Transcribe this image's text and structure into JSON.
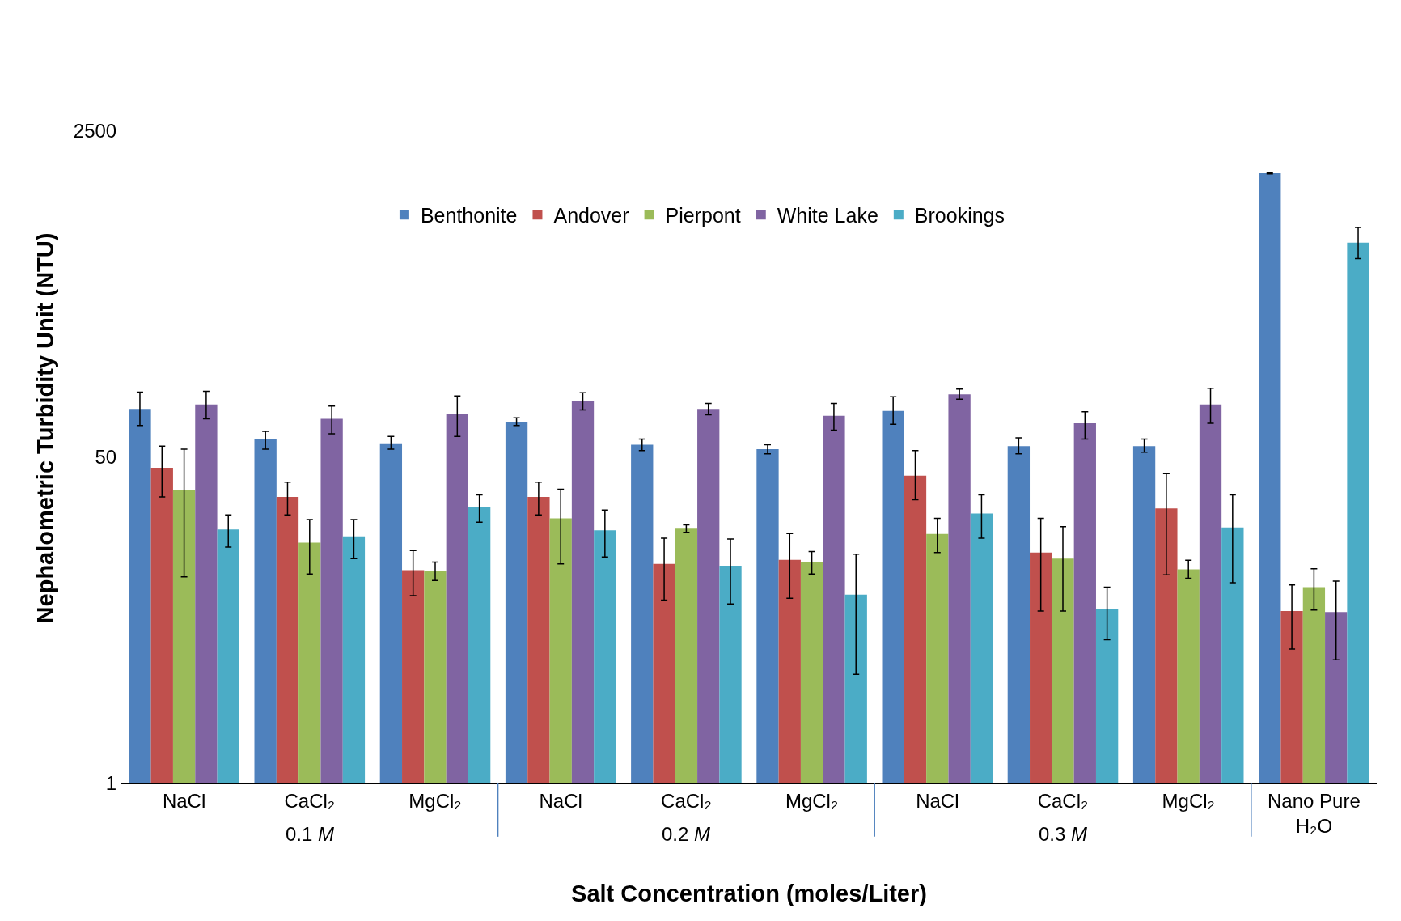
{
  "chart_data": {
    "type": "bar",
    "xlabel": "Salt Concentration (moles/Liter)",
    "ylabel": "Nephalometric Turbidity Unit (NTU)",
    "categories": [
      "NaCl",
      "CaCl₂",
      "MgCl₂",
      "NaCl",
      "CaCl₂",
      "MgCl₂",
      "NaCl",
      "CaCl₂",
      "MgCl₂",
      "Nano Pure H₂O"
    ],
    "annotations": [
      "0.1 M",
      "0.2 M",
      "0.3 M"
    ],
    "series": [
      {
        "name": "Benthonite",
        "color": "#4f81bd",
        "values": [
          89,
          62,
          59,
          76,
          58,
          55,
          87,
          57,
          57,
          1500
        ],
        "errors": [
          [
            73,
            109
          ],
          [
            55,
            68
          ],
          [
            55,
            64
          ],
          [
            73,
            80
          ],
          [
            54,
            62
          ],
          [
            52,
            58
          ],
          [
            74,
            103
          ],
          [
            52,
            63
          ],
          [
            53,
            62
          ],
          [
            1490,
            1510
          ]
        ]
      },
      {
        "name": "Andover",
        "color": "#c0504d",
        "values": [
          44,
          31,
          12.9,
          31,
          13.9,
          14.6,
          40,
          15.9,
          27,
          7.9
        ],
        "errors": [
          [
            31,
            57
          ],
          [
            25,
            37
          ],
          [
            9.5,
            16.3
          ],
          [
            25,
            37
          ],
          [
            9,
            18.9
          ],
          [
            9.2,
            20
          ],
          [
            30,
            54
          ],
          [
            7.9,
            24
          ],
          [
            12.2,
            41
          ],
          [
            5,
            10.8
          ]
        ]
      },
      {
        "name": "Pierpont",
        "color": "#9bbb59",
        "values": [
          33.5,
          17.9,
          12.7,
          24,
          21.2,
          14.2,
          19.9,
          14.8,
          13,
          10.5
        ],
        "errors": [
          [
            11.9,
            55
          ],
          [
            12.3,
            23.6
          ],
          [
            11.4,
            14.2
          ],
          [
            13.9,
            34
          ],
          [
            20.3,
            22.2
          ],
          [
            12.3,
            16.1
          ],
          [
            15.9,
            24
          ],
          [
            7.9,
            21.7
          ],
          [
            11.7,
            14.5
          ],
          [
            8,
            13.1
          ]
        ]
      },
      {
        "name": "White Lake",
        "color": "#8064a2",
        "values": [
          94,
          79,
          84,
          98,
          89,
          82,
          106,
          75,
          94,
          7.8
        ],
        "errors": [
          [
            79,
            110
          ],
          [
            66,
            92
          ],
          [
            64,
            104
          ],
          [
            88,
            108
          ],
          [
            83,
            95
          ],
          [
            69,
            95
          ],
          [
            100,
            113
          ],
          [
            62,
            86
          ],
          [
            75,
            114
          ],
          [
            4.4,
            11.3
          ]
        ]
      },
      {
        "name": "Brookings",
        "color": "#4bacc6",
        "values": [
          21,
          19.3,
          27.4,
          20.8,
          13.6,
          9.6,
          25.4,
          8.1,
          21.5,
          654
        ],
        "errors": [
          [
            17,
            25
          ],
          [
            14.8,
            23.6
          ],
          [
            22.9,
            31.8
          ],
          [
            15.1,
            26.5
          ],
          [
            8.6,
            18.7
          ],
          [
            3.7,
            15.6
          ],
          [
            18.9,
            31.8
          ],
          [
            5.6,
            10.5
          ],
          [
            11.1,
            31.8
          ],
          [
            539,
            784
          ]
        ]
      }
    ],
    "log": true,
    "ylim": [
      1,
      5000
    ],
    "yticks": [
      1,
      50,
      2500
    ],
    "legend": "top"
  }
}
